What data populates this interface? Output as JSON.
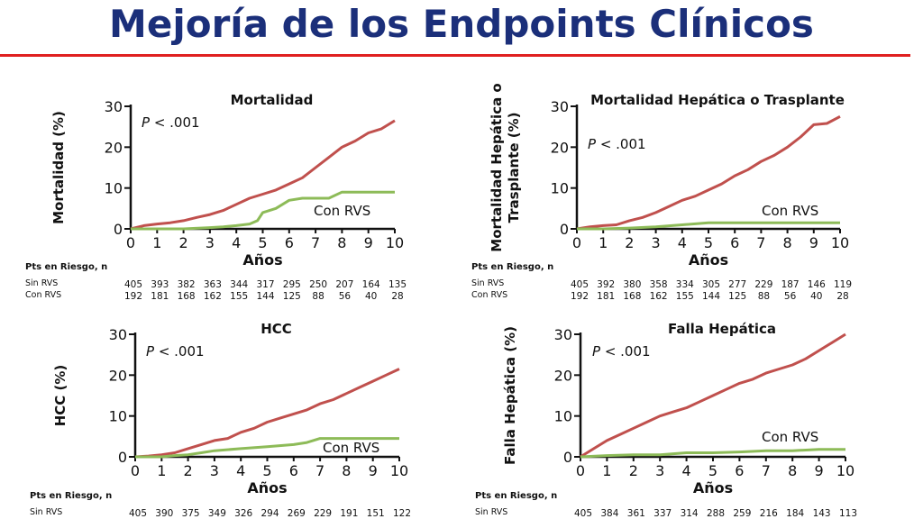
{
  "slide_title": "Mejoría de los Endpoints Clínicos",
  "colors": {
    "sin_rvs": "#c0504d",
    "con_rvs": "#8dbb58",
    "title": "#1b2f7a",
    "rule": "#e02020"
  },
  "chart_data": [
    {
      "type": "line",
      "title": "Mortalidad",
      "ylabel": "Mortalidad (%)",
      "xlabel": "Años",
      "xlim": [
        0,
        10
      ],
      "ylim": [
        0,
        30
      ],
      "xticks": [
        0,
        1,
        2,
        3,
        4,
        5,
        6,
        7,
        8,
        9,
        10
      ],
      "yticks": [
        0,
        10,
        20,
        30
      ],
      "pvalue_prefix": "P",
      "pvalue_rest": " < .001",
      "series": [
        {
          "name": "",
          "color": "#c0504d",
          "x": [
            0,
            0.5,
            1,
            1.5,
            2,
            2.5,
            3,
            3.5,
            4,
            4.5,
            5,
            5.5,
            6,
            6.5,
            7,
            7.5,
            8,
            8.5,
            9,
            9.5,
            10
          ],
          "y": [
            0,
            0.8,
            1.2,
            1.5,
            2,
            2.8,
            3.5,
            4.5,
            6,
            7.5,
            8.5,
            9.5,
            11,
            12.5,
            15,
            17.5,
            20,
            21.5,
            23.5,
            24.5,
            26.5
          ]
        },
        {
          "name": "Con RVS",
          "color": "#8dbb58",
          "x": [
            0,
            1,
            2,
            3,
            3.5,
            4,
            4.5,
            4.8,
            5,
            5.5,
            6,
            6.5,
            7,
            7.5,
            8,
            8.5,
            9,
            9.5,
            10
          ],
          "y": [
            0,
            0,
            0,
            0.3,
            0.5,
            0.8,
            1.2,
            2,
            4,
            5,
            7,
            7.5,
            7.5,
            7.5,
            9,
            9,
            9,
            9,
            9
          ]
        }
      ],
      "risk": {
        "header": "Pts en Riesgo, n",
        "rows": [
          {
            "label": "Sin RVS",
            "values": [
              405,
              393,
              382,
              363,
              344,
              317,
              295,
              250,
              207,
              164,
              135
            ]
          },
          {
            "label": "Con RVS",
            "values": [
              192,
              181,
              168,
              162,
              155,
              144,
              125,
              88,
              56,
              40,
              28
            ]
          }
        ]
      }
    },
    {
      "type": "line",
      "title": "Mortalidad Hepática o Trasplante",
      "ylabel": "Mortalidad Hepática o Trasplante (%)",
      "xlabel": "Años",
      "xlim": [
        0,
        10
      ],
      "ylim": [
        0,
        30
      ],
      "xticks": [
        0,
        1,
        2,
        3,
        4,
        5,
        6,
        7,
        8,
        9,
        10
      ],
      "yticks": [
        0,
        10,
        20,
        30
      ],
      "pvalue_prefix": "P",
      "pvalue_rest": " < .001",
      "series": [
        {
          "name": "",
          "color": "#c0504d",
          "x": [
            0,
            0.5,
            1,
            1.5,
            2,
            2.5,
            3,
            3.5,
            4,
            4.5,
            5,
            5.5,
            6,
            6.5,
            7,
            7.5,
            8,
            8.5,
            9,
            9.5,
            10
          ],
          "y": [
            0,
            0.5,
            0.8,
            1,
            2,
            2.8,
            4,
            5.5,
            7,
            8,
            9.5,
            11,
            13,
            14.5,
            16.5,
            18,
            20,
            22.5,
            25.5,
            25.8,
            27.5
          ]
        },
        {
          "name": "Con RVS",
          "color": "#8dbb58",
          "x": [
            0,
            1,
            2,
            3,
            4,
            5,
            6,
            7,
            8,
            9,
            10
          ],
          "y": [
            0,
            0,
            0.2,
            0.5,
            1,
            1.5,
            1.5,
            1.5,
            1.5,
            1.5,
            1.5
          ]
        }
      ],
      "risk": {
        "header": "Pts en Riesgo, n",
        "rows": [
          {
            "label": "Sin RVS",
            "values": [
              405,
              392,
              380,
              358,
              334,
              305,
              277,
              229,
              187,
              146,
              119
            ]
          },
          {
            "label": "Con RVS",
            "values": [
              192,
              181,
              168,
              162,
              155,
              144,
              125,
              88,
              56,
              40,
              28
            ]
          }
        ]
      }
    },
    {
      "type": "line",
      "title": "HCC",
      "ylabel": "HCC (%)",
      "xlabel": "Años",
      "xlim": [
        0,
        10
      ],
      "ylim": [
        0,
        30
      ],
      "xticks": [
        0,
        1,
        2,
        3,
        4,
        5,
        6,
        7,
        8,
        9,
        10
      ],
      "yticks": [
        0,
        10,
        20,
        30
      ],
      "pvalue_prefix": "P",
      "pvalue_rest": " < .001",
      "series": [
        {
          "name": "",
          "color": "#c0504d",
          "x": [
            0,
            0.5,
            1,
            1.5,
            2,
            2.5,
            3,
            3.5,
            4,
            4.5,
            5,
            5.5,
            6,
            6.5,
            7,
            7.5,
            8,
            8.5,
            9,
            9.5,
            10
          ],
          "y": [
            0,
            0.2,
            0.5,
            1,
            2,
            3,
            4,
            4.5,
            6,
            7,
            8.5,
            9.5,
            10.5,
            11.5,
            13,
            14,
            15.5,
            17,
            18.5,
            20,
            21.5
          ]
        },
        {
          "name": "Con RVS",
          "color": "#8dbb58",
          "x": [
            0,
            1,
            1.5,
            2,
            2.5,
            3,
            4,
            5,
            6,
            6.5,
            7,
            8,
            9,
            10
          ],
          "y": [
            0,
            0,
            0.3,
            0.5,
            1,
            1.5,
            2,
            2.5,
            3,
            3.5,
            4.5,
            4.5,
            4.5,
            4.5
          ]
        }
      ],
      "risk": {
        "header": "Pts en Riesgo, n",
        "rows": [
          {
            "label": "Sin RVS",
            "values": [
              405,
              390,
              375,
              349,
              326,
              294,
              269,
              229,
              191,
              151,
              122
            ]
          }
        ]
      }
    },
    {
      "type": "line",
      "title": "Falla Hepática",
      "ylabel": "Falla Hepática (%)",
      "xlabel": "Años",
      "xlim": [
        0,
        10
      ],
      "ylim": [
        0,
        30
      ],
      "xticks": [
        0,
        1,
        2,
        3,
        4,
        5,
        6,
        7,
        8,
        9,
        10
      ],
      "yticks": [
        0,
        10,
        20,
        30
      ],
      "pvalue_prefix": "P",
      "pvalue_rest": " < .001",
      "series": [
        {
          "name": "",
          "color": "#c0504d",
          "x": [
            0,
            0.5,
            1,
            1.5,
            2,
            2.5,
            3,
            3.5,
            4,
            4.5,
            5,
            5.5,
            6,
            6.5,
            7,
            7.5,
            8,
            8.5,
            9,
            9.5,
            10
          ],
          "y": [
            0,
            2,
            4,
            5.5,
            7,
            8.5,
            10,
            11,
            12,
            13.5,
            15,
            16.5,
            18,
            19,
            20.5,
            21.5,
            22.5,
            24,
            26,
            28,
            30
          ]
        },
        {
          "name": "Con RVS",
          "color": "#8dbb58",
          "x": [
            0,
            1,
            2,
            3,
            4,
            5,
            6,
            7,
            8,
            9,
            10
          ],
          "y": [
            0,
            0.3,
            0.5,
            0.5,
            1,
            1,
            1.2,
            1.5,
            1.5,
            1.8,
            1.8
          ]
        }
      ],
      "risk": {
        "header": "Pts en Riesgo, n",
        "rows": [
          {
            "label": "Sin RVS",
            "values": [
              405,
              384,
              361,
              337,
              314,
              288,
              259,
              216,
              184,
              143,
              113
            ]
          }
        ]
      }
    }
  ]
}
